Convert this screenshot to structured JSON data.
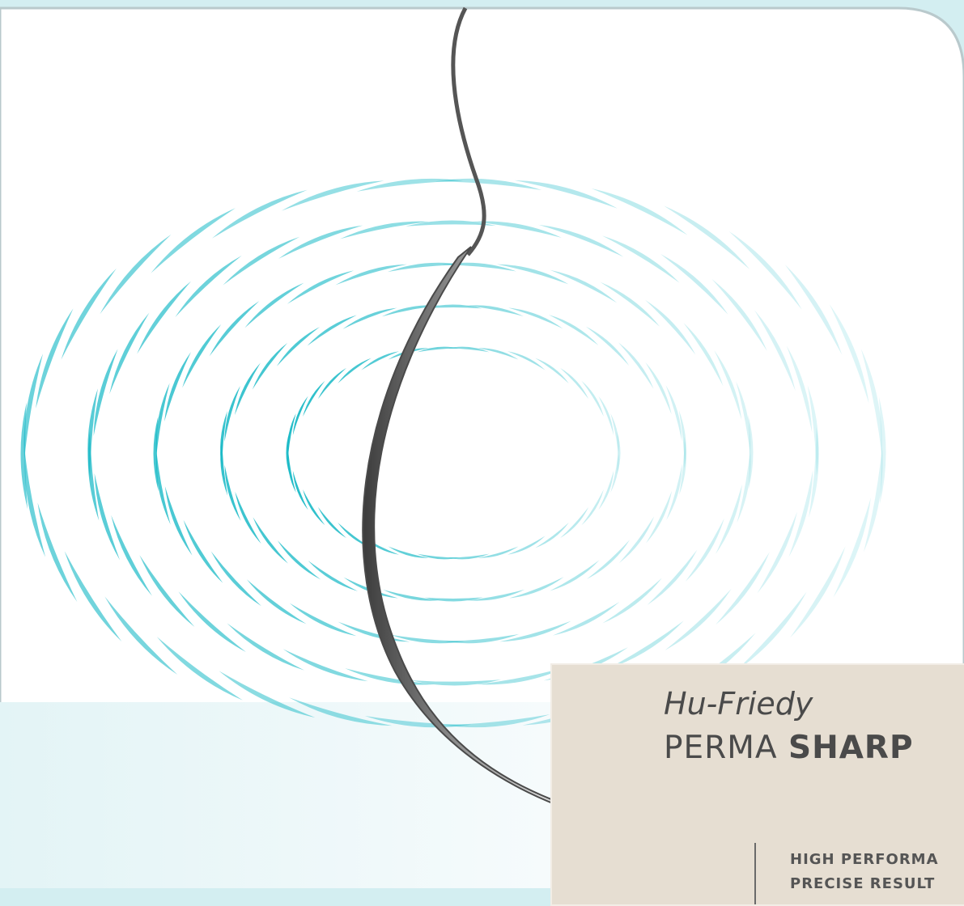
{
  "brand": "Hu-Friedy",
  "product": {
    "first": "PERMA",
    "second": "SHARP"
  },
  "taglines": [
    "HIGH PERFORMA",
    "PRECISE RESULT"
  ]
}
